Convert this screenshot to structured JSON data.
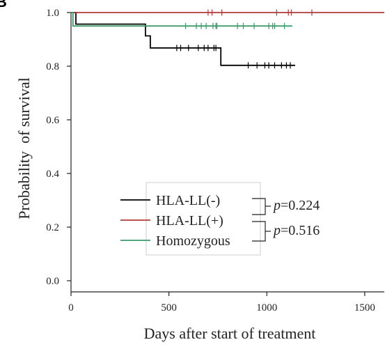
{
  "panel_label": "B",
  "chart_data": {
    "type": "line",
    "subtype": "kaplan-meier",
    "xlabel": "Days after start of treatment",
    "ylabel": "Probability  of survival",
    "xlim": [
      0,
      1600
    ],
    "ylim": [
      0,
      1.0
    ],
    "x_ticks": [
      0,
      500,
      1000,
      1500
    ],
    "x_tick_labels": [
      "0",
      "500",
      "1000",
      "1500"
    ],
    "y_ticks": [
      0.0,
      0.2,
      0.4,
      0.6,
      0.8,
      1.0
    ],
    "y_tick_labels": [
      "0.0",
      "0.2",
      "0.4",
      "0.6",
      "0.8",
      "1.0"
    ],
    "grid": false,
    "legend_position": "lower-center",
    "series": [
      {
        "name": "HLA-LL(-)",
        "color": "#000000",
        "steps": [
          [
            0,
            1.0
          ],
          [
            25,
            1.0
          ],
          [
            25,
            0.957
          ],
          [
            380,
            0.957
          ],
          [
            380,
            0.913
          ],
          [
            405,
            0.913
          ],
          [
            405,
            0.868
          ],
          [
            765,
            0.868
          ],
          [
            765,
            0.803
          ],
          [
            1145,
            0.803
          ]
        ],
        "censored": [
          [
            540,
            0.868
          ],
          [
            560,
            0.868
          ],
          [
            600,
            0.868
          ],
          [
            650,
            0.868
          ],
          [
            680,
            0.868
          ],
          [
            700,
            0.868
          ],
          [
            730,
            0.868
          ],
          [
            740,
            0.868
          ],
          [
            905,
            0.803
          ],
          [
            950,
            0.803
          ],
          [
            990,
            0.803
          ],
          [
            1010,
            0.803
          ],
          [
            1040,
            0.803
          ],
          [
            1075,
            0.803
          ],
          [
            1100,
            0.803
          ],
          [
            1120,
            0.803
          ]
        ]
      },
      {
        "name": "HLA-LL(+)",
        "color": "#b03a3a",
        "steps": [
          [
            0,
            1.0
          ],
          [
            1600,
            1.0
          ]
        ],
        "censored": [
          [
            700,
            1.0
          ],
          [
            720,
            1.0
          ],
          [
            770,
            1.0
          ],
          [
            1050,
            1.0
          ],
          [
            1110,
            1.0
          ],
          [
            1125,
            1.0
          ],
          [
            1230,
            1.0
          ]
        ]
      },
      {
        "name": "Homozygous",
        "color": "#3a9a6a",
        "steps": [
          [
            0,
            1.0
          ],
          [
            10,
            1.0
          ],
          [
            10,
            0.95
          ],
          [
            1130,
            0.95
          ]
        ],
        "censored": [
          [
            585,
            0.95
          ],
          [
            640,
            0.95
          ],
          [
            665,
            0.95
          ],
          [
            690,
            0.95
          ],
          [
            725,
            0.95
          ],
          [
            740,
            0.95
          ],
          [
            745,
            0.95
          ],
          [
            850,
            0.95
          ],
          [
            880,
            0.95
          ],
          [
            935,
            0.95
          ],
          [
            1010,
            0.95
          ],
          [
            1030,
            0.95
          ],
          [
            1040,
            0.95
          ],
          [
            1090,
            0.95
          ]
        ]
      }
    ],
    "annotations": [
      {
        "text_italic": "p",
        "text": "=0.224",
        "compares": [
          "HLA-LL(-)",
          "HLA-LL(+)"
        ]
      },
      {
        "text_italic": "p",
        "text": "=0.516",
        "compares": [
          "HLA-LL(+)",
          "Homozygous"
        ]
      }
    ]
  }
}
